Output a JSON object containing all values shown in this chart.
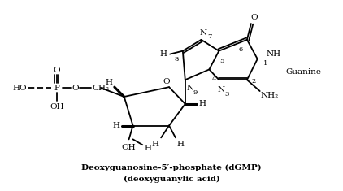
{
  "background": "#ffffff",
  "caption1": "Deoxyguanosine-5′-phosphate (dGMP)",
  "caption2": "(deoxyguanylic acid)",
  "label_guanine": "Guanine",
  "figsize": [
    4.22,
    2.35
  ],
  "dpi": 100
}
